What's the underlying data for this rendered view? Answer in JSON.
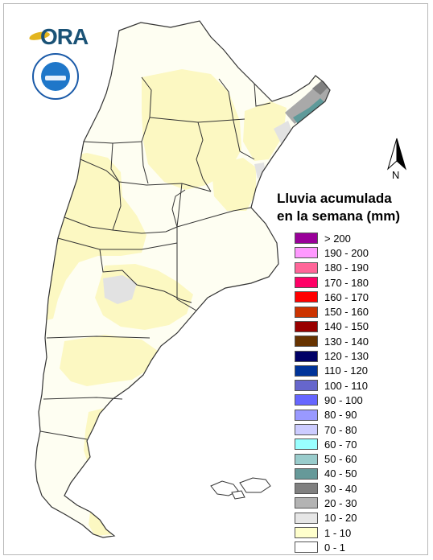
{
  "logo": {
    "brand_text": "ORA"
  },
  "north_arrow": {
    "label": "N"
  },
  "legend": {
    "title_line1": "Lluvia acumulada",
    "title_line2": "en la semana (mm)",
    "items": [
      {
        "label": "> 200",
        "color": "#990099"
      },
      {
        "label": "190 - 200",
        "color": "#ff99ff"
      },
      {
        "label": "180 - 190",
        "color": "#ff6699"
      },
      {
        "label": "170 - 180",
        "color": "#ff0066"
      },
      {
        "label": "160 - 170",
        "color": "#ff0000"
      },
      {
        "label": "150 - 160",
        "color": "#cc3300"
      },
      {
        "label": "140 - 150",
        "color": "#990000"
      },
      {
        "label": "130 - 140",
        "color": "#663300"
      },
      {
        "label": "120 - 130",
        "color": "#000066"
      },
      {
        "label": "110 - 120",
        "color": "#003399"
      },
      {
        "label": "100 - 110",
        "color": "#6666cc"
      },
      {
        "label": "90 - 100",
        "color": "#6666ff"
      },
      {
        "label": "80 - 90",
        "color": "#9999ff"
      },
      {
        "label": "70 - 80",
        "color": "#ccccff"
      },
      {
        "label": "60 - 70",
        "color": "#99ffff"
      },
      {
        "label": "50 - 60",
        "color": "#99cccc"
      },
      {
        "label": "40 - 50",
        "color": "#669999"
      },
      {
        "label": "30 - 40",
        "color": "#808080"
      },
      {
        "label": "20 - 30",
        "color": "#b3b3b3"
      },
      {
        "label": "10 - 20",
        "color": "#e6e6e6"
      },
      {
        "label": "1 - 10",
        "color": "#ffffcc"
      },
      {
        "label": "0 - 1",
        "color": "#ffffff"
      }
    ]
  },
  "map_colors": {
    "base": "#fefef2",
    "light_rain": "#fcf8c2",
    "gray_light": "#e2e2e2",
    "gray_mid": "#a9a9a9",
    "teal": "#5e9a9a",
    "border": "#333333"
  }
}
